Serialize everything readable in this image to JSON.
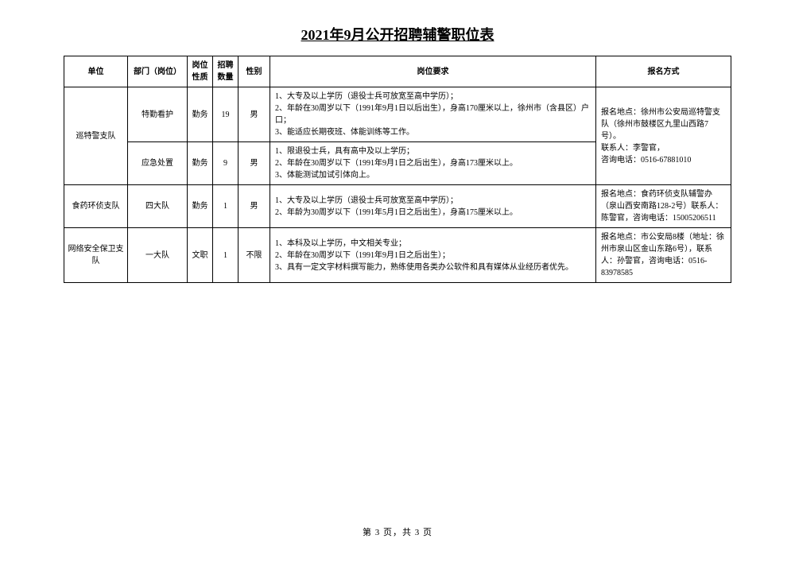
{
  "document": {
    "title": "2021年9月公开招聘辅警职位表",
    "page_footer": "第 3 页，共 3 页"
  },
  "table": {
    "headers": {
      "unit": "单位",
      "dept": "部门（岗位）",
      "nature": "岗位性质",
      "count": "招聘数量",
      "gender": "性别",
      "requirements": "岗位要求",
      "contact": "报名方式"
    },
    "rows": [
      {
        "unit": "巡特警支队",
        "unit_rowspan": 2,
        "dept": "特勤看护",
        "nature": "勤务",
        "count": "19",
        "gender": "男",
        "requirements": "1、大专及以上学历（退役士兵可放宽至高中学历）；\n2、年龄在30周岁以下（1991年9月1日以后出生），身高170厘米以上，徐州市（含县区）户口；\n3、能适应长期夜班、体能训练等工作。",
        "contact": "报名地点：徐州市公安局巡特警支队（徐州市鼓楼区九里山西路7号）。\n联系人：李警官，\n咨询电话：0516-67881010",
        "contact_rowspan": 2
      },
      {
        "dept": "应急处置",
        "nature": "勤务",
        "count": "9",
        "gender": "男",
        "requirements": "1、限退役士兵，具有高中及以上学历；\n2、年龄在30周岁以下（1991年9月1日之后出生），身高173厘米以上。\n3、体能测试加试引体向上。"
      },
      {
        "unit": "食药环侦支队",
        "unit_rowspan": 1,
        "dept": "四大队",
        "nature": "勤务",
        "count": "1",
        "gender": "男",
        "requirements": "1、大专及以上学历（退役士兵可放宽至高中学历）；\n2、年龄为30周岁以下（1991年5月1日之后出生），身高175厘米以上。",
        "contact": "报名地点：食药环侦支队辅警办（泉山西安南路128-2号）联系人：陈警官，咨询电话：15005206511",
        "contact_rowspan": 1
      },
      {
        "unit": "网络安全保卫支队",
        "unit_rowspan": 1,
        "dept": "一大队",
        "nature": "文职",
        "count": "1",
        "gender": "不限",
        "requirements": "1、本科及以上学历，中文相关专业；\n2、年龄在30周岁以下（1991年9月1日之后出生）；\n3、具有一定文字材料撰写能力，熟练使用各类办公软件和具有媒体从业经历者优先。",
        "contact": "报名地点：市公安局8楼（地址：徐州市泉山区金山东路6号），联系人：孙警官，咨询电话：0516-83978585",
        "contact_rowspan": 1
      }
    ]
  },
  "style": {
    "background_color": "#ffffff",
    "border_color": "#000000",
    "text_color": "#000000",
    "title_fontsize": 18,
    "body_fontsize": 10
  }
}
